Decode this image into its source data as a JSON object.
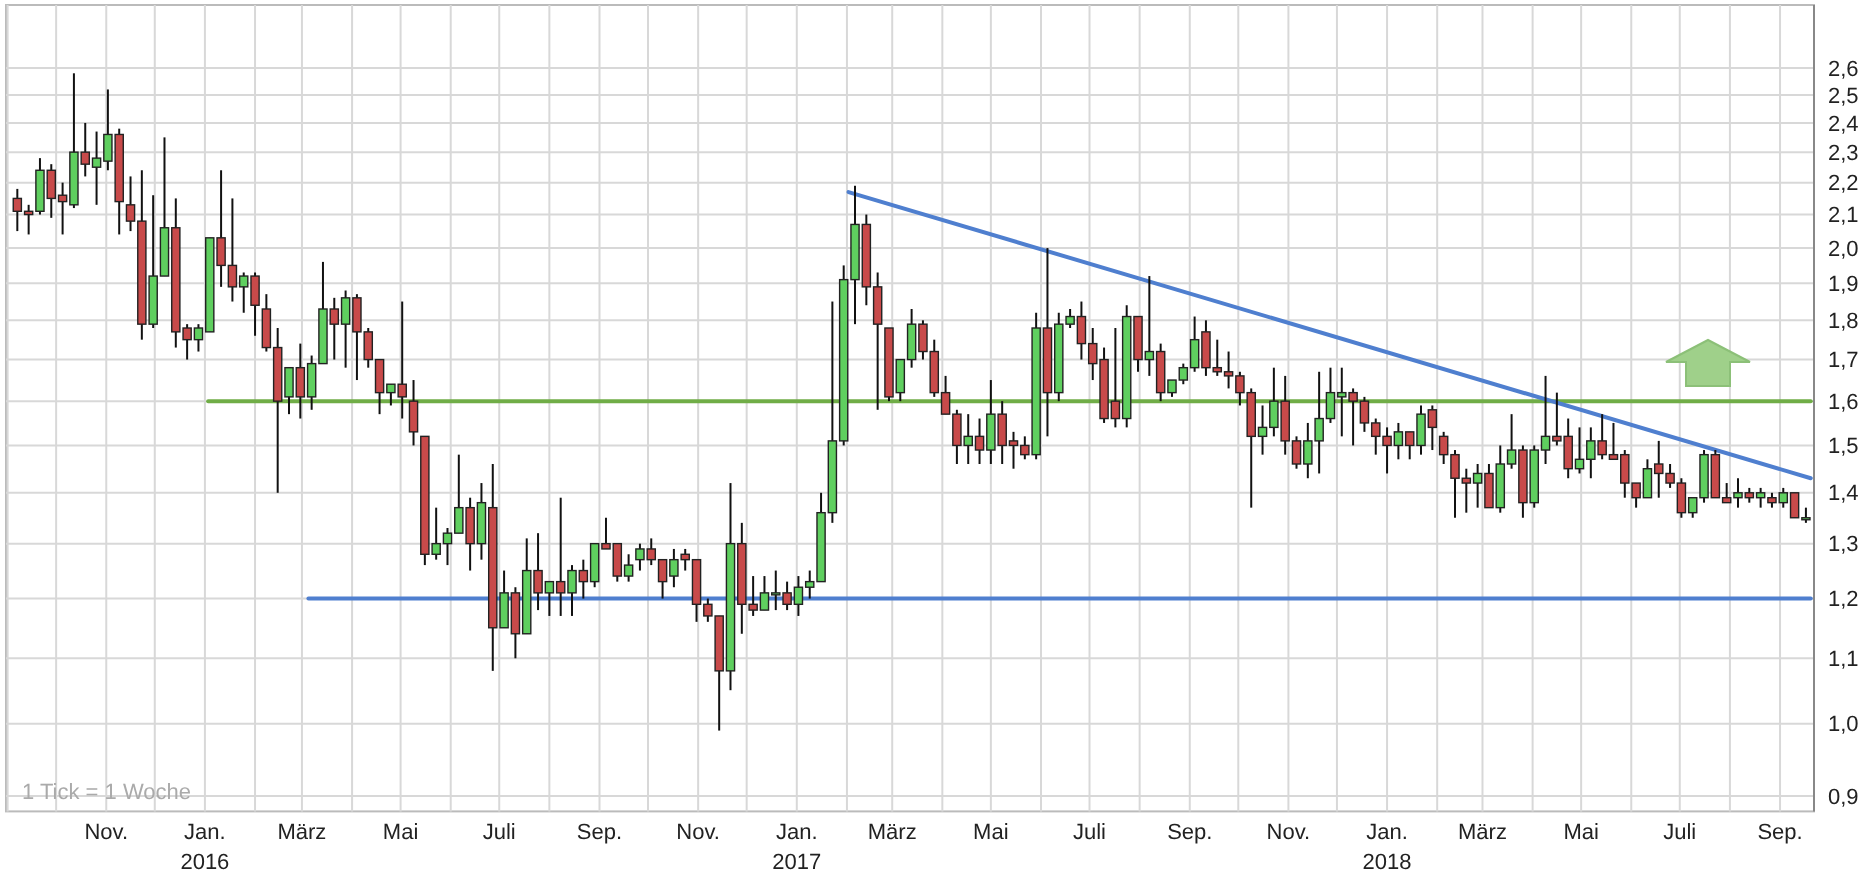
{
  "chart_data": {
    "type": "candlestick",
    "log": true,
    "grid": true,
    "annotations": [
      "1 Tick = 1 Woche"
    ],
    "xlim": [
      "2015-08-31",
      "2018-09-22"
    ],
    "ylim": [
      0.88,
      2.85
    ],
    "xticks": [
      {
        "value": "2015-09-01",
        "label": null
      },
      {
        "value": "2015-10-01",
        "label": null
      },
      {
        "value": "2015-11-01",
        "label": "Nov."
      },
      {
        "value": "2015-12-01",
        "label": null
      },
      {
        "value": "2016-01-01",
        "label": "Jan.\n2016"
      },
      {
        "value": "2016-02-01",
        "label": null
      },
      {
        "value": "2016-03-01",
        "label": "März"
      },
      {
        "value": "2016-04-01",
        "label": null
      },
      {
        "value": "2016-05-01",
        "label": "Mai"
      },
      {
        "value": "2016-06-01",
        "label": null
      },
      {
        "value": "2016-07-01",
        "label": "Juli"
      },
      {
        "value": "2016-08-01",
        "label": null
      },
      {
        "value": "2016-09-01",
        "label": "Sep."
      },
      {
        "value": "2016-10-01",
        "label": null
      },
      {
        "value": "2016-11-01",
        "label": "Nov."
      },
      {
        "value": "2016-12-01",
        "label": null
      },
      {
        "value": "2017-01-01",
        "label": "Jan.\n2017"
      },
      {
        "value": "2017-02-01",
        "label": null
      },
      {
        "value": "2017-03-01",
        "label": "März"
      },
      {
        "value": "2017-04-01",
        "label": null
      },
      {
        "value": "2017-05-01",
        "label": "Mai"
      },
      {
        "value": "2017-06-01",
        "label": null
      },
      {
        "value": "2017-07-01",
        "label": "Juli"
      },
      {
        "value": "2017-08-01",
        "label": null
      },
      {
        "value": "2017-09-01",
        "label": "Sep."
      },
      {
        "value": "2017-10-01",
        "label": null
      },
      {
        "value": "2017-11-01",
        "label": "Nov."
      },
      {
        "value": "2017-12-01",
        "label": null
      },
      {
        "value": "2018-01-01",
        "label": "Jan.\n2018"
      },
      {
        "value": "2018-02-01",
        "label": null
      },
      {
        "value": "2018-03-01",
        "label": "März"
      },
      {
        "value": "2018-04-01",
        "label": null
      },
      {
        "value": "2018-05-01",
        "label": "Mai"
      },
      {
        "value": "2018-06-01",
        "label": null
      },
      {
        "value": "2018-07-01",
        "label": "Juli"
      },
      {
        "value": "2018-08-01",
        "label": null
      },
      {
        "value": "2018-09-01",
        "label": "Sep."
      }
    ],
    "yticks": [
      {
        "value": 0.9,
        "label": "0,9"
      },
      {
        "value": 1.0,
        "label": "1,0"
      },
      {
        "value": 1.1,
        "label": "1,1"
      },
      {
        "value": 1.2,
        "label": "1,2"
      },
      {
        "value": 1.3,
        "label": "1,3"
      },
      {
        "value": 1.4,
        "label": "1,4"
      },
      {
        "value": 1.5,
        "label": "1,5"
      },
      {
        "value": 1.6,
        "label": "1,6"
      },
      {
        "value": 1.7,
        "label": "1,7"
      },
      {
        "value": 1.8,
        "label": "1,8"
      },
      {
        "value": 1.9,
        "label": "1,9"
      },
      {
        "value": 2.0,
        "label": "2,0"
      },
      {
        "value": 2.1,
        "label": "2,1"
      },
      {
        "value": 2.2,
        "label": "2,2"
      },
      {
        "value": 2.3,
        "label": "2,3"
      },
      {
        "value": 2.4,
        "label": "2,4"
      },
      {
        "value": 2.5,
        "label": "2,5"
      },
      {
        "value": 2.6,
        "label": "2,6"
      }
    ],
    "x": [
      "2015-09-07",
      "2015-09-14",
      "2015-09-21",
      "2015-09-28",
      "2015-10-05",
      "2015-10-12",
      "2015-10-19",
      "2015-10-26",
      "2015-11-02",
      "2015-11-09",
      "2015-11-16",
      "2015-11-23",
      "2015-11-30",
      "2015-12-07",
      "2015-12-14",
      "2015-12-21",
      "2015-12-28",
      "2016-01-04",
      "2016-01-11",
      "2016-01-18",
      "2016-01-25",
      "2016-02-01",
      "2016-02-08",
      "2016-02-15",
      "2016-02-22",
      "2016-02-29",
      "2016-03-07",
      "2016-03-14",
      "2016-03-21",
      "2016-03-28",
      "2016-04-04",
      "2016-04-11",
      "2016-04-18",
      "2016-04-25",
      "2016-05-02",
      "2016-05-09",
      "2016-05-16",
      "2016-05-23",
      "2016-05-30",
      "2016-06-06",
      "2016-06-13",
      "2016-06-20",
      "2016-06-27",
      "2016-07-04",
      "2016-07-11",
      "2016-07-18",
      "2016-07-25",
      "2016-08-01",
      "2016-08-08",
      "2016-08-15",
      "2016-08-22",
      "2016-08-29",
      "2016-09-05",
      "2016-09-12",
      "2016-09-19",
      "2016-09-26",
      "2016-10-03",
      "2016-10-10",
      "2016-10-17",
      "2016-10-24",
      "2016-10-31",
      "2016-11-07",
      "2016-11-14",
      "2016-11-21",
      "2016-11-28",
      "2016-12-05",
      "2016-12-12",
      "2016-12-19",
      "2016-12-26",
      "2017-01-02",
      "2017-01-09",
      "2017-01-16",
      "2017-01-23",
      "2017-01-30",
      "2017-02-06",
      "2017-02-13",
      "2017-02-20",
      "2017-02-27",
      "2017-03-06",
      "2017-03-13",
      "2017-03-20",
      "2017-03-27",
      "2017-04-03",
      "2017-04-10",
      "2017-04-17",
      "2017-04-24",
      "2017-05-01",
      "2017-05-08",
      "2017-05-15",
      "2017-05-22",
      "2017-05-29",
      "2017-06-05",
      "2017-06-12",
      "2017-06-19",
      "2017-06-26",
      "2017-07-03",
      "2017-07-10",
      "2017-07-17",
      "2017-07-24",
      "2017-07-31",
      "2017-08-07",
      "2017-08-14",
      "2017-08-21",
      "2017-08-28",
      "2017-09-04",
      "2017-09-11",
      "2017-09-18",
      "2017-09-25",
      "2017-10-02",
      "2017-10-09",
      "2017-10-16",
      "2017-10-23",
      "2017-10-30",
      "2017-11-06",
      "2017-11-13",
      "2017-11-20",
      "2017-11-27",
      "2017-12-04",
      "2017-12-11",
      "2017-12-18",
      "2017-12-25",
      "2018-01-01",
      "2018-01-08",
      "2018-01-15",
      "2018-01-22",
      "2018-01-29",
      "2018-02-05",
      "2018-02-12",
      "2018-02-19",
      "2018-02-26",
      "2018-03-05",
      "2018-03-12",
      "2018-03-19",
      "2018-03-26",
      "2018-04-02",
      "2018-04-09",
      "2018-04-16",
      "2018-04-23",
      "2018-04-30",
      "2018-05-07",
      "2018-05-14",
      "2018-05-21",
      "2018-05-28",
      "2018-06-04",
      "2018-06-11",
      "2018-06-18",
      "2018-06-25",
      "2018-07-02",
      "2018-07-09",
      "2018-07-16",
      "2018-07-23",
      "2018-07-30",
      "2018-08-06",
      "2018-08-13",
      "2018-08-20",
      "2018-08-27",
      "2018-09-03",
      "2018-09-10",
      "2018-09-17"
    ],
    "ohlc": [
      [
        2.15,
        2.18,
        2.05,
        2.11
      ],
      [
        2.11,
        2.13,
        2.04,
        2.1
      ],
      [
        2.11,
        2.28,
        2.1,
        2.24
      ],
      [
        2.24,
        2.26,
        2.09,
        2.15
      ],
      [
        2.16,
        2.2,
        2.04,
        2.14
      ],
      [
        2.13,
        2.58,
        2.12,
        2.3
      ],
      [
        2.3,
        2.4,
        2.22,
        2.26
      ],
      [
        2.25,
        2.37,
        2.13,
        2.28
      ],
      [
        2.27,
        2.52,
        2.24,
        2.36
      ],
      [
        2.36,
        2.38,
        2.04,
        2.14
      ],
      [
        2.13,
        2.22,
        2.05,
        2.08
      ],
      [
        2.08,
        2.24,
        1.75,
        1.79
      ],
      [
        1.79,
        2.16,
        1.78,
        1.92
      ],
      [
        1.92,
        2.35,
        1.92,
        2.06
      ],
      [
        2.06,
        2.15,
        1.73,
        1.77
      ],
      [
        1.78,
        1.79,
        1.7,
        1.75
      ],
      [
        1.75,
        1.79,
        1.72,
        1.78
      ],
      [
        1.77,
        2.03,
        1.77,
        2.03
      ],
      [
        2.03,
        2.24,
        1.89,
        1.95
      ],
      [
        1.95,
        2.15,
        1.85,
        1.89
      ],
      [
        1.89,
        1.93,
        1.82,
        1.92
      ],
      [
        1.92,
        1.93,
        1.76,
        1.84
      ],
      [
        1.83,
        1.87,
        1.72,
        1.73
      ],
      [
        1.73,
        1.78,
        1.4,
        1.6
      ],
      [
        1.61,
        1.68,
        1.57,
        1.68
      ],
      [
        1.68,
        1.74,
        1.56,
        1.61
      ],
      [
        1.61,
        1.71,
        1.58,
        1.69
      ],
      [
        1.69,
        1.96,
        1.69,
        1.83
      ],
      [
        1.83,
        1.86,
        1.7,
        1.79
      ],
      [
        1.79,
        1.88,
        1.68,
        1.86
      ],
      [
        1.86,
        1.87,
        1.65,
        1.77
      ],
      [
        1.77,
        1.78,
        1.68,
        1.7
      ],
      [
        1.7,
        1.7,
        1.57,
        1.62
      ],
      [
        1.62,
        1.64,
        1.59,
        1.64
      ],
      [
        1.64,
        1.85,
        1.56,
        1.61
      ],
      [
        1.6,
        1.65,
        1.5,
        1.53
      ],
      [
        1.52,
        1.52,
        1.26,
        1.28
      ],
      [
        1.28,
        1.37,
        1.27,
        1.3
      ],
      [
        1.3,
        1.33,
        1.26,
        1.32
      ],
      [
        1.32,
        1.48,
        1.32,
        1.37
      ],
      [
        1.37,
        1.39,
        1.25,
        1.3
      ],
      [
        1.3,
        1.42,
        1.27,
        1.38
      ],
      [
        1.37,
        1.46,
        1.08,
        1.15
      ],
      [
        1.15,
        1.25,
        1.15,
        1.21
      ],
      [
        1.21,
        1.22,
        1.1,
        1.14
      ],
      [
        1.14,
        1.31,
        1.14,
        1.25
      ],
      [
        1.25,
        1.32,
        1.18,
        1.21
      ],
      [
        1.21,
        1.23,
        1.17,
        1.23
      ],
      [
        1.23,
        1.39,
        1.17,
        1.21
      ],
      [
        1.21,
        1.26,
        1.17,
        1.25
      ],
      [
        1.25,
        1.27,
        1.2,
        1.23
      ],
      [
        1.23,
        1.3,
        1.22,
        1.3
      ],
      [
        1.3,
        1.35,
        1.29,
        1.29
      ],
      [
        1.3,
        1.3,
        1.23,
        1.24
      ],
      [
        1.24,
        1.28,
        1.23,
        1.26
      ],
      [
        1.27,
        1.3,
        1.25,
        1.29
      ],
      [
        1.29,
        1.31,
        1.26,
        1.27
      ],
      [
        1.27,
        1.27,
        1.2,
        1.23
      ],
      [
        1.24,
        1.29,
        1.22,
        1.27
      ],
      [
        1.28,
        1.29,
        1.25,
        1.27
      ],
      [
        1.27,
        1.27,
        1.16,
        1.19
      ],
      [
        1.19,
        1.2,
        1.16,
        1.17
      ],
      [
        1.17,
        1.17,
        0.99,
        1.08
      ],
      [
        1.08,
        1.42,
        1.05,
        1.3
      ],
      [
        1.3,
        1.34,
        1.14,
        1.19
      ],
      [
        1.19,
        1.24,
        1.17,
        1.18
      ],
      [
        1.18,
        1.24,
        1.18,
        1.21
      ],
      [
        1.21,
        1.25,
        1.18,
        1.21
      ],
      [
        1.21,
        1.23,
        1.18,
        1.19
      ],
      [
        1.19,
        1.24,
        1.17,
        1.22
      ],
      [
        1.22,
        1.25,
        1.2,
        1.23
      ],
      [
        1.23,
        1.4,
        1.23,
        1.36
      ],
      [
        1.36,
        1.85,
        1.34,
        1.51
      ],
      [
        1.51,
        1.95,
        1.5,
        1.91
      ],
      [
        1.91,
        2.19,
        1.79,
        2.07
      ],
      [
        2.07,
        2.1,
        1.84,
        1.89
      ],
      [
        1.89,
        1.93,
        1.58,
        1.79
      ],
      [
        1.78,
        1.78,
        1.6,
        1.61
      ],
      [
        1.62,
        1.7,
        1.6,
        1.7
      ],
      [
        1.7,
        1.83,
        1.68,
        1.79
      ],
      [
        1.79,
        1.8,
        1.7,
        1.72
      ],
      [
        1.72,
        1.75,
        1.61,
        1.62
      ],
      [
        1.62,
        1.66,
        1.57,
        1.57
      ],
      [
        1.57,
        1.58,
        1.46,
        1.5
      ],
      [
        1.5,
        1.57,
        1.46,
        1.52
      ],
      [
        1.52,
        1.56,
        1.46,
        1.49
      ],
      [
        1.49,
        1.65,
        1.46,
        1.57
      ],
      [
        1.57,
        1.6,
        1.46,
        1.5
      ],
      [
        1.51,
        1.53,
        1.45,
        1.5
      ],
      [
        1.5,
        1.52,
        1.47,
        1.48
      ],
      [
        1.48,
        1.82,
        1.47,
        1.78
      ],
      [
        1.78,
        2.0,
        1.52,
        1.62
      ],
      [
        1.62,
        1.82,
        1.6,
        1.79
      ],
      [
        1.79,
        1.83,
        1.78,
        1.81
      ],
      [
        1.81,
        1.85,
        1.7,
        1.74
      ],
      [
        1.74,
        1.78,
        1.65,
        1.69
      ],
      [
        1.7,
        1.73,
        1.55,
        1.56
      ],
      [
        1.6,
        1.78,
        1.54,
        1.56
      ],
      [
        1.56,
        1.84,
        1.54,
        1.81
      ],
      [
        1.81,
        1.81,
        1.67,
        1.7
      ],
      [
        1.7,
        1.92,
        1.66,
        1.72
      ],
      [
        1.72,
        1.74,
        1.6,
        1.62
      ],
      [
        1.62,
        1.65,
        1.61,
        1.65
      ],
      [
        1.65,
        1.69,
        1.64,
        1.68
      ],
      [
        1.68,
        1.81,
        1.67,
        1.75
      ],
      [
        1.77,
        1.8,
        1.66,
        1.68
      ],
      [
        1.68,
        1.75,
        1.66,
        1.67
      ],
      [
        1.67,
        1.72,
        1.63,
        1.66
      ],
      [
        1.66,
        1.67,
        1.59,
        1.62
      ],
      [
        1.62,
        1.63,
        1.37,
        1.52
      ],
      [
        1.52,
        1.59,
        1.48,
        1.54
      ],
      [
        1.54,
        1.68,
        1.52,
        1.6
      ],
      [
        1.6,
        1.66,
        1.48,
        1.51
      ],
      [
        1.51,
        1.52,
        1.45,
        1.46
      ],
      [
        1.46,
        1.55,
        1.43,
        1.51
      ],
      [
        1.51,
        1.67,
        1.44,
        1.56
      ],
      [
        1.56,
        1.68,
        1.55,
        1.62
      ],
      [
        1.61,
        1.68,
        1.52,
        1.62
      ],
      [
        1.62,
        1.63,
        1.5,
        1.6
      ],
      [
        1.6,
        1.61,
        1.53,
        1.55
      ],
      [
        1.55,
        1.56,
        1.48,
        1.52
      ],
      [
        1.52,
        1.54,
        1.44,
        1.5
      ],
      [
        1.5,
        1.55,
        1.47,
        1.53
      ],
      [
        1.53,
        1.53,
        1.47,
        1.5
      ],
      [
        1.5,
        1.59,
        1.48,
        1.57
      ],
      [
        1.58,
        1.59,
        1.49,
        1.54
      ],
      [
        1.52,
        1.53,
        1.46,
        1.48
      ],
      [
        1.48,
        1.49,
        1.35,
        1.43
      ],
      [
        1.43,
        1.45,
        1.36,
        1.42
      ],
      [
        1.42,
        1.46,
        1.37,
        1.44
      ],
      [
        1.44,
        1.46,
        1.37,
        1.37
      ],
      [
        1.37,
        1.5,
        1.36,
        1.46
      ],
      [
        1.46,
        1.57,
        1.45,
        1.49
      ],
      [
        1.49,
        1.5,
        1.35,
        1.38
      ],
      [
        1.38,
        1.5,
        1.37,
        1.49
      ],
      [
        1.49,
        1.66,
        1.46,
        1.52
      ],
      [
        1.52,
        1.62,
        1.5,
        1.51
      ],
      [
        1.52,
        1.56,
        1.43,
        1.45
      ],
      [
        1.45,
        1.54,
        1.44,
        1.47
      ],
      [
        1.47,
        1.54,
        1.43,
        1.51
      ],
      [
        1.51,
        1.57,
        1.47,
        1.48
      ],
      [
        1.48,
        1.55,
        1.47,
        1.47
      ],
      [
        1.48,
        1.49,
        1.39,
        1.42
      ],
      [
        1.42,
        1.42,
        1.37,
        1.39
      ],
      [
        1.39,
        1.47,
        1.39,
        1.45
      ],
      [
        1.46,
        1.51,
        1.39,
        1.44
      ],
      [
        1.44,
        1.46,
        1.41,
        1.42
      ],
      [
        1.42,
        1.43,
        1.35,
        1.36
      ],
      [
        1.36,
        1.39,
        1.35,
        1.39
      ],
      [
        1.39,
        1.49,
        1.38,
        1.48
      ],
      [
        1.48,
        1.49,
        1.39,
        1.39
      ],
      [
        1.39,
        1.42,
        1.38,
        1.38
      ],
      [
        1.39,
        1.43,
        1.37,
        1.4
      ],
      [
        1.4,
        1.41,
        1.38,
        1.39
      ],
      [
        1.39,
        1.41,
        1.37,
        1.4
      ],
      [
        1.39,
        1.4,
        1.37,
        1.38
      ],
      [
        1.38,
        1.41,
        1.37,
        1.4
      ],
      [
        1.4,
        1.4,
        1.35,
        1.35
      ],
      [
        1.35,
        1.37,
        1.34,
        1.35
      ]
    ],
    "series": [
      {
        "type": "line",
        "color": "#70ad47",
        "x": [
          "2016-01-03",
          "2018-09-20"
        ],
        "values": [
          1.6,
          1.6
        ]
      },
      {
        "type": "line",
        "color": "#4f7fcf",
        "x": [
          "2016-03-05",
          "2018-09-20"
        ],
        "values": [
          1.2,
          1.2
        ]
      },
      {
        "type": "line",
        "color": "#4f7fcf",
        "x": [
          "2017-02-02",
          "2018-09-20"
        ],
        "values": [
          2.17,
          1.43
        ]
      }
    ]
  }
}
